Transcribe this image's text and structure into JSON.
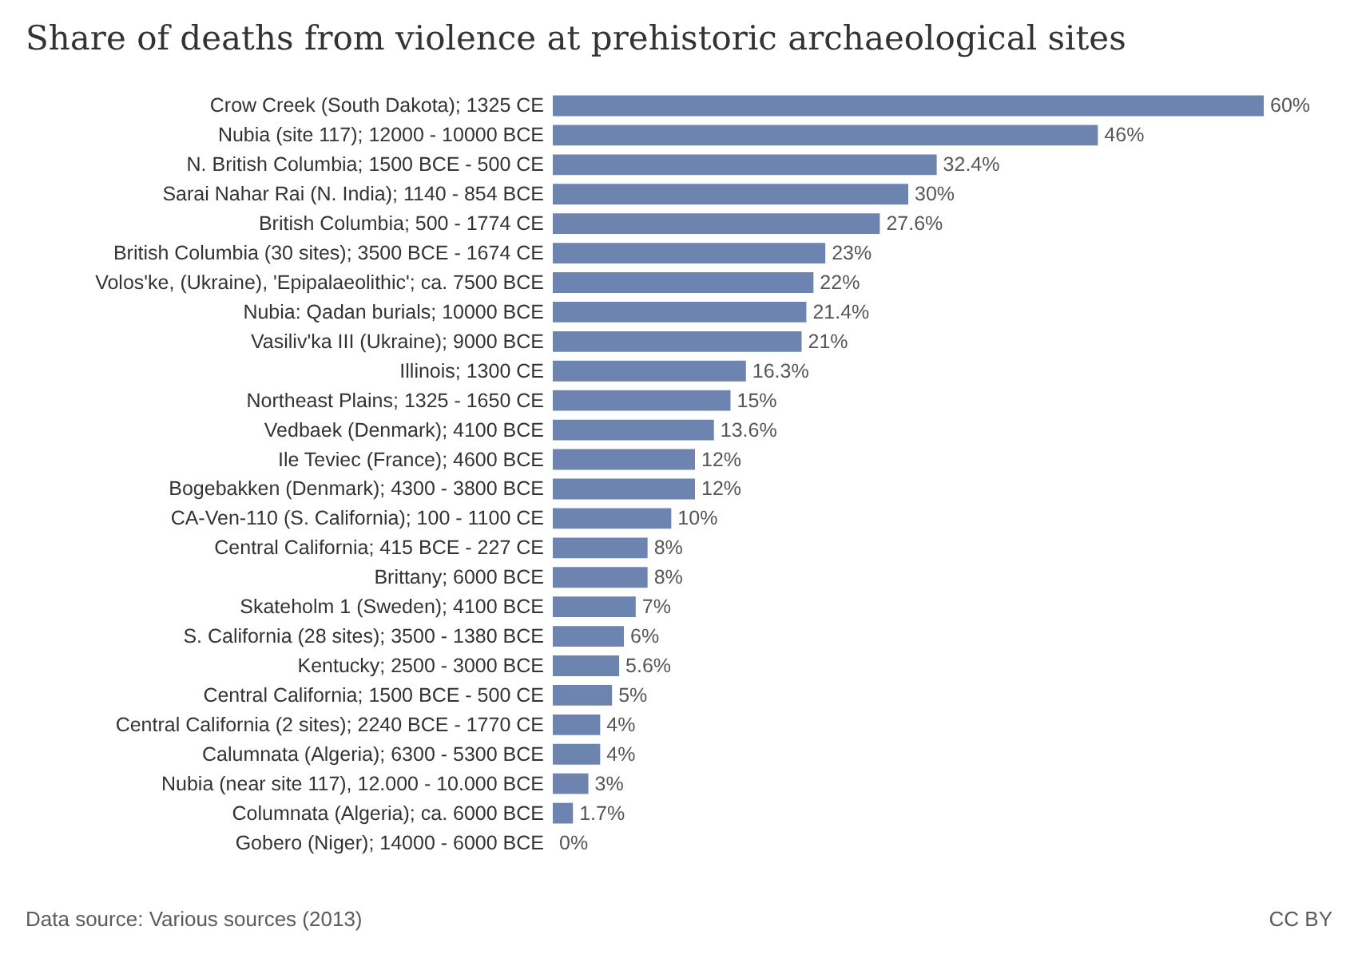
{
  "chart_data": {
    "type": "bar",
    "orientation": "horizontal",
    "title": "Share of deaths from violence at prehistoric archaeological sites",
    "categories": [
      "Crow Creek (South Dakota); 1325 CE",
      "Nubia (site 117); 12000 - 10000 BCE",
      "N. British Columbia; 1500 BCE - 500 CE",
      "Sarai Nahar Rai (N. India); 1140 - 854 BCE",
      "British Columbia; 500 - 1774 CE",
      "British Columbia (30 sites); 3500 BCE - 1674 CE",
      "Volos'ke, (Ukraine), 'Epipalaeolithic'; ca. 7500 BCE",
      "Nubia: Qadan burials; 10000 BCE",
      "Vasiliv'ka III (Ukraine); 9000 BCE",
      "Illinois; 1300 CE",
      "Northeast Plains; 1325 - 1650 CE",
      "Vedbaek (Denmark); 4100 BCE",
      "Ile Teviec (France); 4600 BCE",
      "Bogebakken (Denmark); 4300 - 3800 BCE",
      "CA-Ven-110 (S. California); 100 - 1100 CE",
      "Central California; 415 BCE - 227 CE",
      "Brittany; 6000 BCE",
      "Skateholm 1 (Sweden); 4100 BCE",
      "S. California (28 sites); 3500 - 1380 BCE",
      "Kentucky; 2500 - 3000 BCE",
      "Central California; 1500 BCE - 500 CE",
      "Central California (2 sites); 2240 BCE - 1770 CE",
      "Calumnata (Algeria); 6300 - 5300 BCE",
      "Nubia (near site 117), 12.000 - 10.000 BCE",
      "Columnata (Algeria); ca. 6000 BCE",
      "Gobero (Niger); 14000 - 6000 BCE"
    ],
    "values": [
      60,
      46,
      32.4,
      30,
      27.6,
      23,
      22,
      21.4,
      21,
      16.3,
      15,
      13.6,
      12,
      12,
      10,
      8,
      8,
      7,
      6,
      5.6,
      5,
      4,
      4,
      3,
      1.7,
      0
    ],
    "value_labels": [
      "60%",
      "46%",
      "32.4%",
      "30%",
      "27.6%",
      "23%",
      "22%",
      "21.4%",
      "21%",
      "16.3%",
      "15%",
      "13.6%",
      "12%",
      "12%",
      "10%",
      "8%",
      "8%",
      "7%",
      "6%",
      "5.6%",
      "5%",
      "4%",
      "4%",
      "3%",
      "1.7%",
      "0%"
    ],
    "color": "#6d84b0",
    "annotations": [
      "Data source: Various sources (2013)",
      "CC BY"
    ]
  }
}
